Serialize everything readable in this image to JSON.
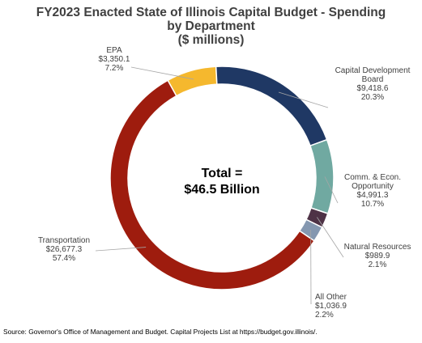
{
  "title_lines": [
    "FY2023 Enacted State of Illinois Capital Budget - Spending",
    "by Department",
    "($ millions)"
  ],
  "center_label_lines": [
    "Total =",
    "$46.5 Billion"
  ],
  "source": "Source: Governor's Office of Management and Budget. Capital Projects List at https://budget.gov.illinois/.",
  "chart_data": {
    "type": "pie",
    "variant": "donut",
    "title": "FY2023 Enacted State of Illinois Capital Budget - Spending by Department ($ millions)",
    "total_label": "Total = $46.5 Billion",
    "slices": [
      {
        "name": "EPA",
        "value": 3350.1,
        "value_label": "$3,350.1",
        "percent_label": "7.2%",
        "color": "#f5b82e"
      },
      {
        "name": "Capital Development Board",
        "value": 9418.6,
        "value_label": "$9,418.6",
        "percent_label": "20.3%",
        "color": "#1f3864"
      },
      {
        "name": "Comm. & Econ. Opportunity",
        "value": 4991.3,
        "value_label": "$4,991.3",
        "percent_label": "10.7%",
        "color": "#70a9a1"
      },
      {
        "name": "Natural Resources",
        "value": 989.9,
        "value_label": "$989.9",
        "percent_label": "2.1%",
        "color": "#4e3246"
      },
      {
        "name": "All Other",
        "value": 1036.9,
        "value_label": "$1,036.9",
        "percent_label": "2.2%",
        "color": "#8497b0"
      },
      {
        "name": "Transportation",
        "value": 26677.3,
        "value_label": "$26,677.3",
        "percent_label": "57.4%",
        "color": "#9e1c0e"
      }
    ]
  }
}
